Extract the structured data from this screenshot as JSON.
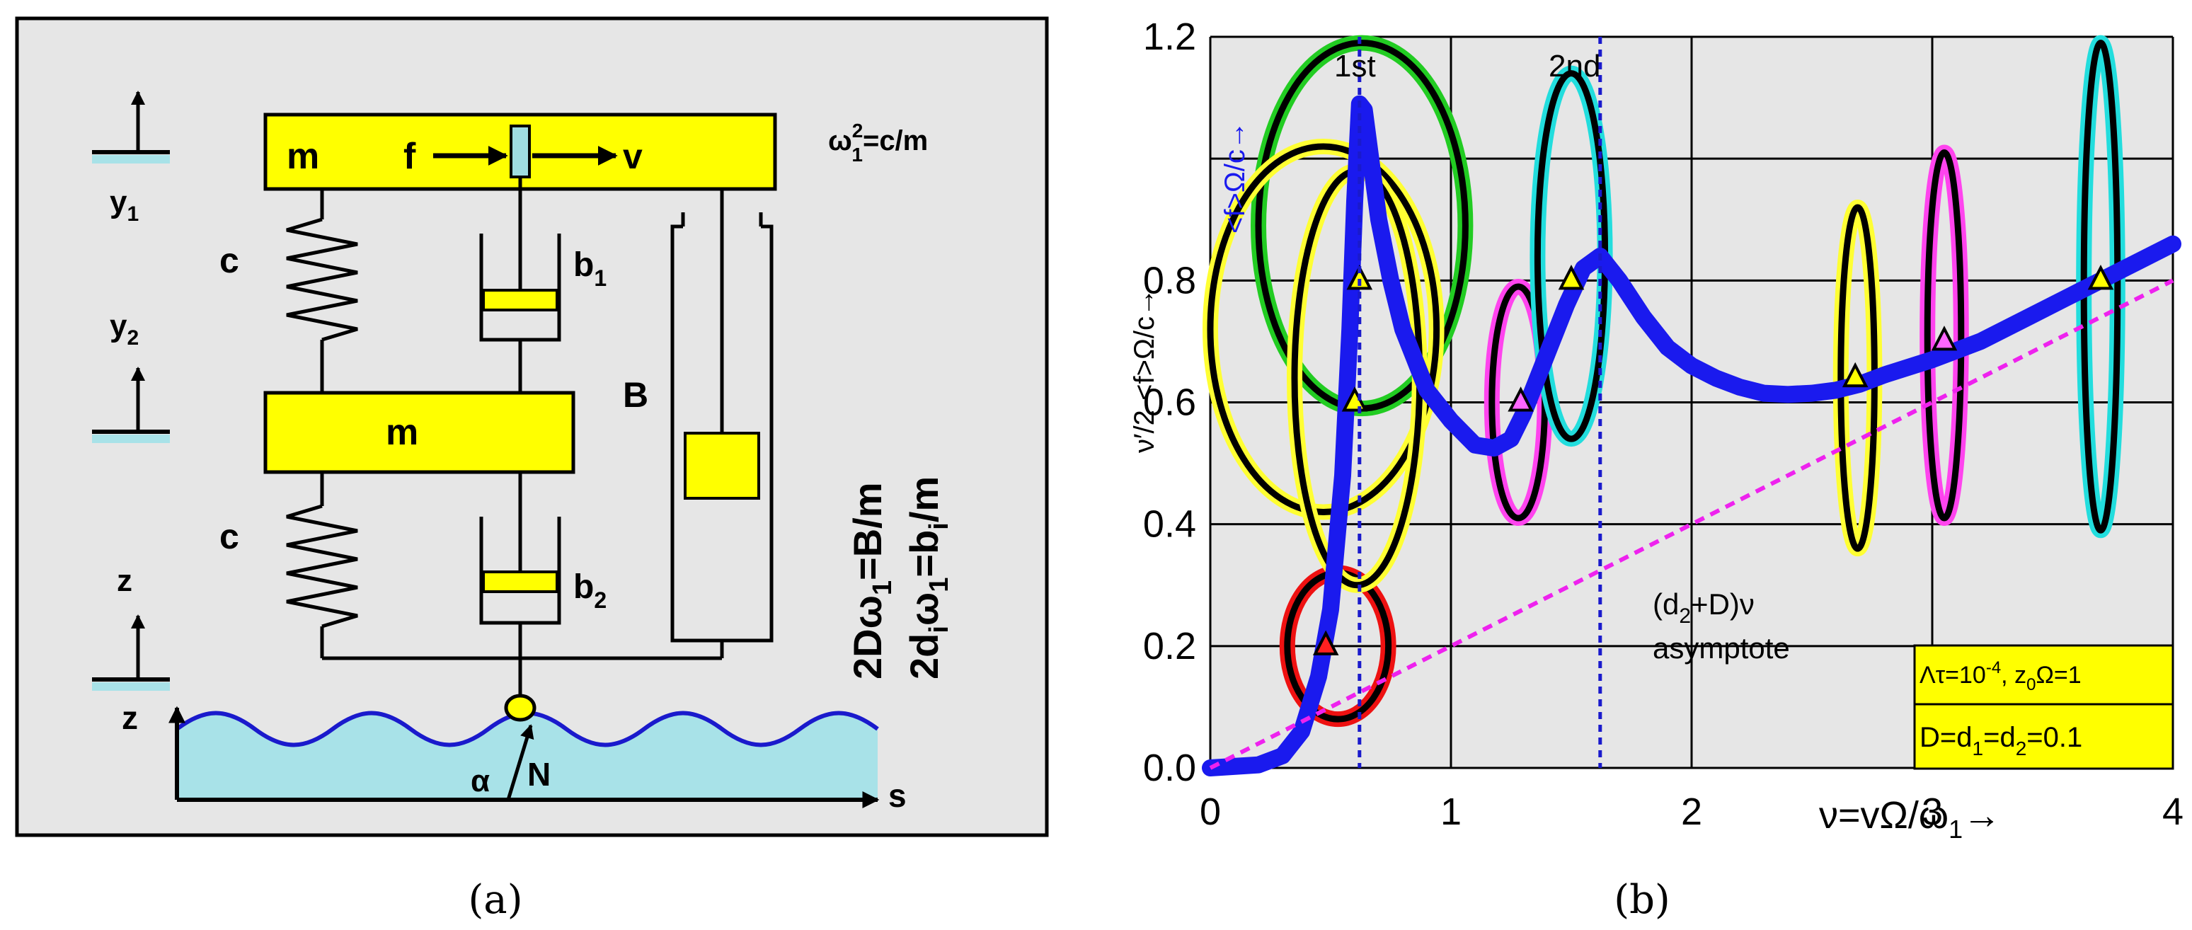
{
  "panel_a": {
    "caption": "(a)",
    "coords": {
      "y1": "y",
      "y1_sub": "1",
      "y2": "y",
      "y2_sub": "2",
      "z": "z"
    },
    "mass_top": "m",
    "mass_mid": "m",
    "force": "f",
    "velocity": "v",
    "spring_top": "c",
    "spring_bot": "c",
    "damper_1": "b",
    "damper_1_sub": "1",
    "damper_2": "b",
    "damper_2_sub": "2",
    "damper_big": "B",
    "freq": "ω",
    "freq_sup": "2",
    "freq_sub": "1",
    "freq_rest": "=c/m",
    "eq_a": "2Dω",
    "eq_a_sub": "1",
    "eq_a_rest": "=B/m",
    "eq_b": "2d",
    "eq_b_sub": "i",
    "eq_b_mid": "ω",
    "eq_b_sub2": "1",
    "eq_b_rest": "=b",
    "eq_b_sub3": "i",
    "eq_b_rest2": "/m",
    "ground_z": "z",
    "ground_s": "s",
    "alpha": "α",
    "normal": "N",
    "colors": {
      "mass": "#ffff00",
      "bg": "#e6e6e6",
      "water": "#a8e2e8",
      "wave": "#1a1acc",
      "slider": "#9fdce0"
    }
  },
  "panel_b": {
    "caption": "(b)",
    "label_1st": "1st",
    "label_2nd": "2nd",
    "y_axis_label": "ν′/2-<f>Ω/c→",
    "y_axis_label_blue": "<f>Ω/c→",
    "x_axis_label": "ν=vΩ/ω",
    "x_axis_label_sub": "1",
    "x_axis_label_arrow": "→",
    "asym_line1": "(d",
    "asym_line1_sub": "2",
    "asym_line1_rest": "+D)ν",
    "asym_line2": "asymptote",
    "box_line1": "Λτ=10",
    "box_line1_sup": "-4",
    "box_line1_mid": ", z",
    "box_line1_sub": "0",
    "box_line1_rest": "Ω=1",
    "box_line2": "D=d",
    "box_line2_sub1": "1",
    "box_line2_mid": "=d",
    "box_line2_sub2": "2",
    "box_line2_rest": "=0.1",
    "colors": {
      "curve": "#1a1aee",
      "asymptote": "#ee22ee",
      "box": "#ffff00",
      "grid": "#000000",
      "bg": "#e6e6e6"
    }
  },
  "chart_data": {
    "type": "line",
    "title": "",
    "xlabel": "ν=vΩ/ω1→",
    "ylabel": "ν′/2-<f>Ω/c→",
    "xlim": [
      0,
      4
    ],
    "ylim": [
      0,
      1.2
    ],
    "x_ticks": [
      "0",
      "1",
      "2",
      "3",
      "4"
    ],
    "y_ticks": [
      "0.0",
      "0.2",
      "0.4",
      "0.6",
      "0.8",
      "1.2"
    ],
    "vlines": [
      {
        "name": "1st",
        "x": 0.62
      },
      {
        "name": "2nd",
        "x": 1.62
      }
    ],
    "series": [
      {
        "name": "response",
        "x": [
          0,
          0.2,
          0.3,
          0.38,
          0.45,
          0.5,
          0.55,
          0.58,
          0.6,
          0.62,
          0.64,
          0.67,
          0.7,
          0.75,
          0.8,
          0.9,
          1.0,
          1.1,
          1.18,
          1.25,
          1.3,
          1.4,
          1.48,
          1.55,
          1.62,
          1.7,
          1.8,
          1.9,
          2.0,
          2.1,
          2.2,
          2.3,
          2.4,
          2.5,
          2.6,
          2.7,
          2.8,
          3.0,
          3.2,
          3.4,
          3.6,
          3.8,
          4.0
        ],
        "y": [
          0.0,
          0.005,
          0.02,
          0.06,
          0.15,
          0.26,
          0.48,
          0.72,
          0.93,
          1.09,
          1.08,
          0.99,
          0.9,
          0.8,
          0.72,
          0.62,
          0.57,
          0.53,
          0.525,
          0.54,
          0.58,
          0.68,
          0.76,
          0.82,
          0.84,
          0.8,
          0.74,
          0.69,
          0.66,
          0.64,
          0.625,
          0.615,
          0.613,
          0.615,
          0.62,
          0.63,
          0.645,
          0.67,
          0.7,
          0.74,
          0.78,
          0.82,
          0.86
        ]
      },
      {
        "name": "asymptote (d2+D)ν",
        "x": [
          0,
          4
        ],
        "y": [
          0,
          0.8
        ]
      }
    ],
    "markers": [
      {
        "x": 0.48,
        "y": 0.2,
        "color": "#ff2020"
      },
      {
        "x": 0.6,
        "y": 0.6,
        "color": "#ffff00"
      },
      {
        "x": 0.62,
        "y": 0.8,
        "color": "#ffff00"
      },
      {
        "x": 1.29,
        "y": 0.6,
        "color": "#ff66ff"
      },
      {
        "x": 1.5,
        "y": 0.8,
        "color": "#ffff00"
      },
      {
        "x": 2.68,
        "y": 0.64,
        "color": "#ffff00"
      },
      {
        "x": 3.05,
        "y": 0.7,
        "color": "#ff66ff"
      },
      {
        "x": 3.7,
        "y": 0.8,
        "color": "#ffff00"
      }
    ],
    "ellipses": [
      {
        "cx": 0.53,
        "cy": 0.2,
        "rx": 0.21,
        "ry": 0.12,
        "color": "#ee1111"
      },
      {
        "cx": 0.63,
        "cy": 0.89,
        "rx": 0.43,
        "ry": 0.3,
        "color": "#22cc22"
      },
      {
        "cx": 0.47,
        "cy": 0.72,
        "rx": 0.47,
        "ry": 0.3,
        "color": "#ffff33"
      },
      {
        "cx": 0.61,
        "cy": 0.64,
        "rx": 0.26,
        "ry": 0.34,
        "color": "#ffff33"
      },
      {
        "cx": 1.28,
        "cy": 0.6,
        "rx": 0.11,
        "ry": 0.19,
        "color": "#ff44ee"
      },
      {
        "cx": 1.5,
        "cy": 0.84,
        "rx": 0.14,
        "ry": 0.3,
        "color": "#22dddd"
      },
      {
        "cx": 2.69,
        "cy": 0.64,
        "rx": 0.07,
        "ry": 0.28,
        "color": "#ffff33"
      },
      {
        "cx": 3.05,
        "cy": 0.71,
        "rx": 0.07,
        "ry": 0.3,
        "color": "#ff44ee"
      },
      {
        "cx": 3.7,
        "cy": 0.79,
        "rx": 0.07,
        "ry": 0.4,
        "color": "#22dddd"
      }
    ]
  }
}
